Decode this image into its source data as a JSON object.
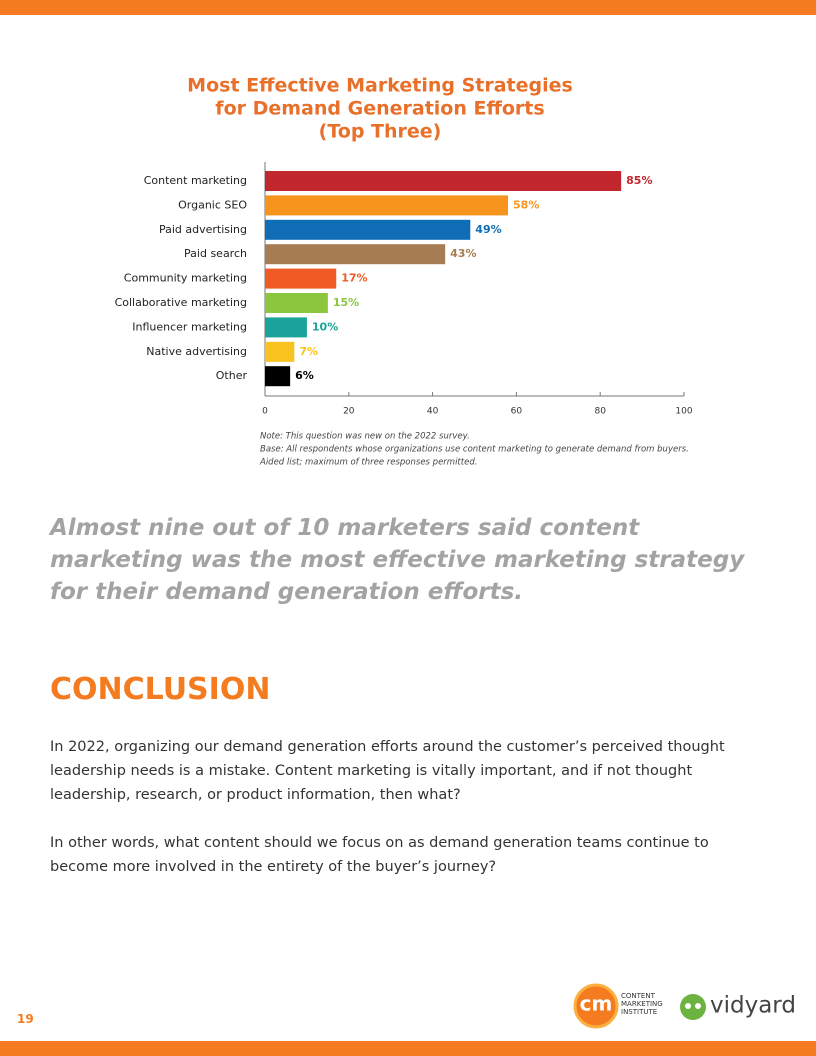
{
  "chart_data": {
    "type": "bar",
    "orientation": "horizontal",
    "title": [
      "Most Effective Marketing Strategies",
      "for Demand Generation Efforts",
      "(Top Three)"
    ],
    "categories": [
      "Content marketing",
      "Organic SEO",
      "Paid advertising",
      "Paid search",
      "Community marketing",
      "Collaborative marketing",
      "Influencer marketing",
      "Native advertising",
      "Other"
    ],
    "values": [
      85,
      58,
      49,
      43,
      17,
      15,
      10,
      7,
      6
    ],
    "value_labels": [
      "85%",
      "58%",
      "49%",
      "43%",
      "17%",
      "15%",
      "10%",
      "7%",
      "6%"
    ],
    "colors": [
      "#c1272d",
      "#f7941d",
      "#0f6db5",
      "#a67c52",
      "#f15a24",
      "#8cc63f",
      "#1aa39a",
      "#f9c31f",
      "#000000"
    ],
    "xlim": [
      0,
      100
    ],
    "xticks": [
      0,
      20,
      40,
      60,
      80,
      100
    ],
    "notes": [
      "Note: This question was new on the 2022 survey.",
      "Base: All respondents whose organizations use content marketing to generate demand from buyers.",
      "Aided list; maximum of three responses permitted."
    ]
  },
  "quote": "Almost nine out of 10 marketers said content marketing was the most effective marketing strategy for their demand generation efforts.",
  "heading": "CONCLUSION",
  "paragraphs": [
    "In 2022, organizing our demand generation efforts around the customer’s perceived thought leadership needs is a mistake. Content marketing is vitally important, and if not thought leadership, research, or product information, then what?",
    "In other words, what content should we focus on as demand generation teams continue to become more involved in the entirety of the buyer’s journey?"
  ],
  "page_number": "19",
  "logos": {
    "cmi_mark": "cm",
    "cmi_text": [
      "CONTENT",
      "MARKETING",
      "INSTITUTE"
    ],
    "vidyard": "vidyard"
  }
}
